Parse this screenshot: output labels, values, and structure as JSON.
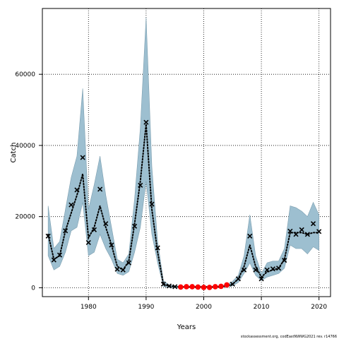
{
  "chart_data": {
    "type": "line",
    "xlabel": "Years",
    "ylabel": "Catch",
    "xlim": [
      1972,
      2022
    ],
    "ylim": [
      -2500,
      78500
    ],
    "x_ticks": [
      1980,
      1990,
      2000,
      2010,
      2020
    ],
    "y_ticks": [
      0,
      20000,
      40000,
      60000
    ],
    "grid": true,
    "footer": "stockassessment.org, codEastNWWG2021 rev. r14766",
    "colors": {
      "band": "#9dbfd0",
      "band_edge": "#7d9fb0",
      "line": "#000000",
      "highlight": "#ff0000"
    },
    "series": [
      {
        "kind": "estimate",
        "x": [
          1973,
          1974,
          1975,
          1976,
          1977,
          1978,
          1979,
          1980,
          1981,
          1982,
          1983,
          1984,
          1985,
          1986,
          1987,
          1988,
          1989,
          1990,
          1991,
          1992,
          1993,
          1994,
          1995,
          1996,
          1997,
          1998,
          1999,
          2000,
          2001,
          2002,
          2003,
          2004,
          2005,
          2006,
          2007,
          2008,
          2009,
          2010,
          2011,
          2012,
          2013,
          2014,
          2015,
          2016,
          2017,
          2018,
          2019,
          2020
        ],
        "values": [
          15000,
          8000,
          9000,
          16000,
          21000,
          26000,
          32000,
          14000,
          17000,
          23000,
          17000,
          12000,
          6000,
          5000,
          7500,
          18000,
          30000,
          46000,
          22000,
          10000,
          1000,
          500,
          300,
          200,
          200,
          200,
          200,
          200,
          200,
          200,
          300,
          500,
          1000,
          2500,
          6000,
          12000,
          6000,
          3000,
          4500,
          5000,
          5500,
          8000,
          15500,
          15500,
          15500,
          15000,
          15500,
          15500
        ]
      },
      {
        "kind": "upper",
        "x": [
          1973,
          1974,
          1975,
          1976,
          1977,
          1978,
          1979,
          1980,
          1981,
          1982,
          1983,
          1984,
          1985,
          1986,
          1987,
          1988,
          1989,
          1990,
          1991,
          1992,
          1993,
          1994,
          1995,
          1996,
          1997,
          1998,
          1999,
          2000,
          2001,
          2002,
          2003,
          2004,
          2005,
          2006,
          2007,
          2008,
          2009,
          2010,
          2011,
          2012,
          2013,
          2014,
          2015,
          2016,
          2017,
          2018,
          2019,
          2020
        ],
        "values": [
          23000,
          11000,
          13000,
          22000,
          31000,
          37000,
          56000,
          22000,
          29000,
          37000,
          26000,
          17000,
          8000,
          7000,
          9500,
          25000,
          45000,
          76000,
          34000,
          13000,
          2000,
          800,
          500,
          400,
          400,
          400,
          400,
          400,
          400,
          400,
          600,
          900,
          1800,
          3500,
          9000,
          20500,
          9000,
          4000,
          7000,
          7500,
          7500,
          11000,
          23000,
          22500,
          21500,
          20000,
          24000,
          20500
        ]
      },
      {
        "kind": "lower",
        "x": [
          1973,
          1974,
          1975,
          1976,
          1977,
          1978,
          1979,
          1980,
          1981,
          1982,
          1983,
          1984,
          1985,
          1986,
          1987,
          1988,
          1989,
          1990,
          1991,
          1992,
          1993,
          1994,
          1995,
          1996,
          1997,
          1998,
          1999,
          2000,
          2001,
          2002,
          2003,
          2004,
          2005,
          2006,
          2007,
          2008,
          2009,
          2010,
          2011,
          2012,
          2013,
          2014,
          2015,
          2016,
          2017,
          2018,
          2019,
          2020
        ],
        "values": [
          9000,
          5000,
          6000,
          10000,
          16000,
          17000,
          24000,
          9000,
          10000,
          15000,
          11000,
          8000,
          4000,
          3500,
          4500,
          10000,
          17000,
          30000,
          15000,
          7000,
          300,
          100,
          50,
          50,
          50,
          50,
          50,
          50,
          50,
          50,
          100,
          200,
          500,
          1500,
          4000,
          7000,
          3500,
          2000,
          3000,
          3500,
          4000,
          5500,
          12000,
          11000,
          11000,
          9500,
          11500,
          10500
        ]
      },
      {
        "kind": "observed",
        "x": [
          1973,
          1974,
          1975,
          1976,
          1977,
          1978,
          1979,
          1980,
          1981,
          1982,
          1983,
          1984,
          1985,
          1986,
          1987,
          1988,
          1989,
          1990,
          1991,
          1992,
          1993,
          1994,
          1995,
          2005,
          2006,
          2007,
          2008,
          2009,
          2010,
          2011,
          2012,
          2013,
          2014,
          2015,
          2016,
          2017,
          2018,
          2019,
          2020
        ],
        "values": [
          14500,
          7800,
          9200,
          16000,
          23300,
          27500,
          36600,
          12700,
          16300,
          27700,
          18000,
          12000,
          5200,
          5000,
          7000,
          17300,
          28800,
          46500,
          23500,
          11200,
          1000,
          500,
          300,
          1000,
          2500,
          5000,
          14500,
          5000,
          2500,
          5000,
          5300,
          5500,
          7700,
          15900,
          15000,
          16300,
          15000,
          18000,
          15800
        ]
      },
      {
        "kind": "highlighted",
        "x": [
          1996,
          1997,
          1998,
          1999,
          2000,
          2001,
          2002,
          2003,
          2004
        ],
        "values": [
          200,
          300,
          300,
          200,
          100,
          100,
          300,
          400,
          800
        ]
      }
    ]
  }
}
